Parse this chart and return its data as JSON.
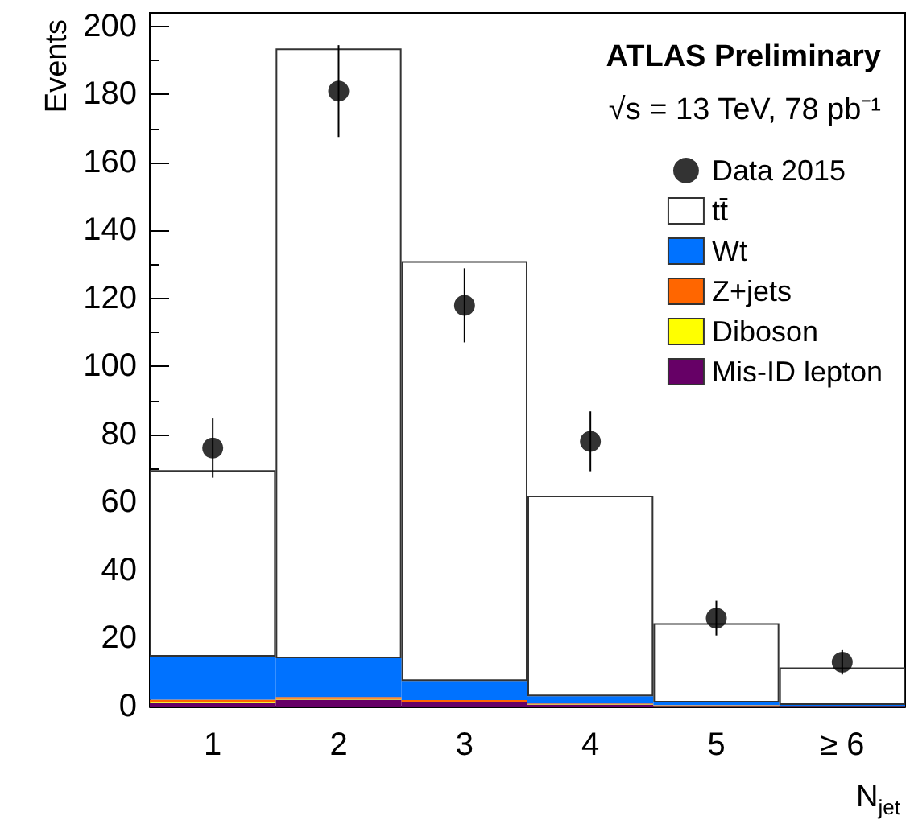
{
  "chart_data": {
    "type": "bar",
    "stacked": true,
    "xlabel": "N$_{jet}$",
    "ylabel": "Events",
    "annotations": [
      "ATLAS Preliminary",
      "√s = 13 TeV, 78 pb⁻¹"
    ],
    "categories": [
      "1",
      "2",
      "3",
      "4",
      "5",
      "≥ 6"
    ],
    "series": [
      {
        "name": "Mis-ID lepton",
        "color": "#660066",
        "values": [
          1,
          2,
          1.2,
          0.6,
          0.2,
          0.1
        ]
      },
      {
        "name": "Diboson",
        "color": "#ffff00",
        "values": [
          0.4,
          0.2,
          0.2,
          0.1,
          0.1,
          0
        ]
      },
      {
        "name": "Z+jets",
        "color": "#ff6600",
        "values": [
          0.6,
          0.6,
          0.5,
          0.2,
          0.1,
          0.1
        ]
      },
      {
        "name": "Wt",
        "color": "#0072ff",
        "values": [
          12.7,
          11.4,
          5.6,
          2.1,
          0.8,
          0.3
        ]
      },
      {
        "name": "tt̄",
        "color": "#ffffff",
        "values": [
          54.8,
          179.3,
          123.5,
          59,
          23.3,
          11
        ]
      },
      {
        "name": "Data 2015",
        "type": "scatter",
        "color": "#000000",
        "x": [
          "1",
          "2",
          "3",
          "4",
          "5",
          "≥ 6"
        ],
        "values": [
          76,
          181,
          118,
          78,
          26,
          13
        ],
        "errors": [
          8.7,
          13.5,
          10.9,
          8.8,
          5.1,
          3.6
        ]
      }
    ],
    "ylim": [
      0,
      204
    ],
    "yticks": [
      0,
      20,
      40,
      60,
      80,
      100,
      120,
      140,
      160,
      180,
      200
    ],
    "marker": "circle",
    "legend": "top right",
    "grid": false
  }
}
